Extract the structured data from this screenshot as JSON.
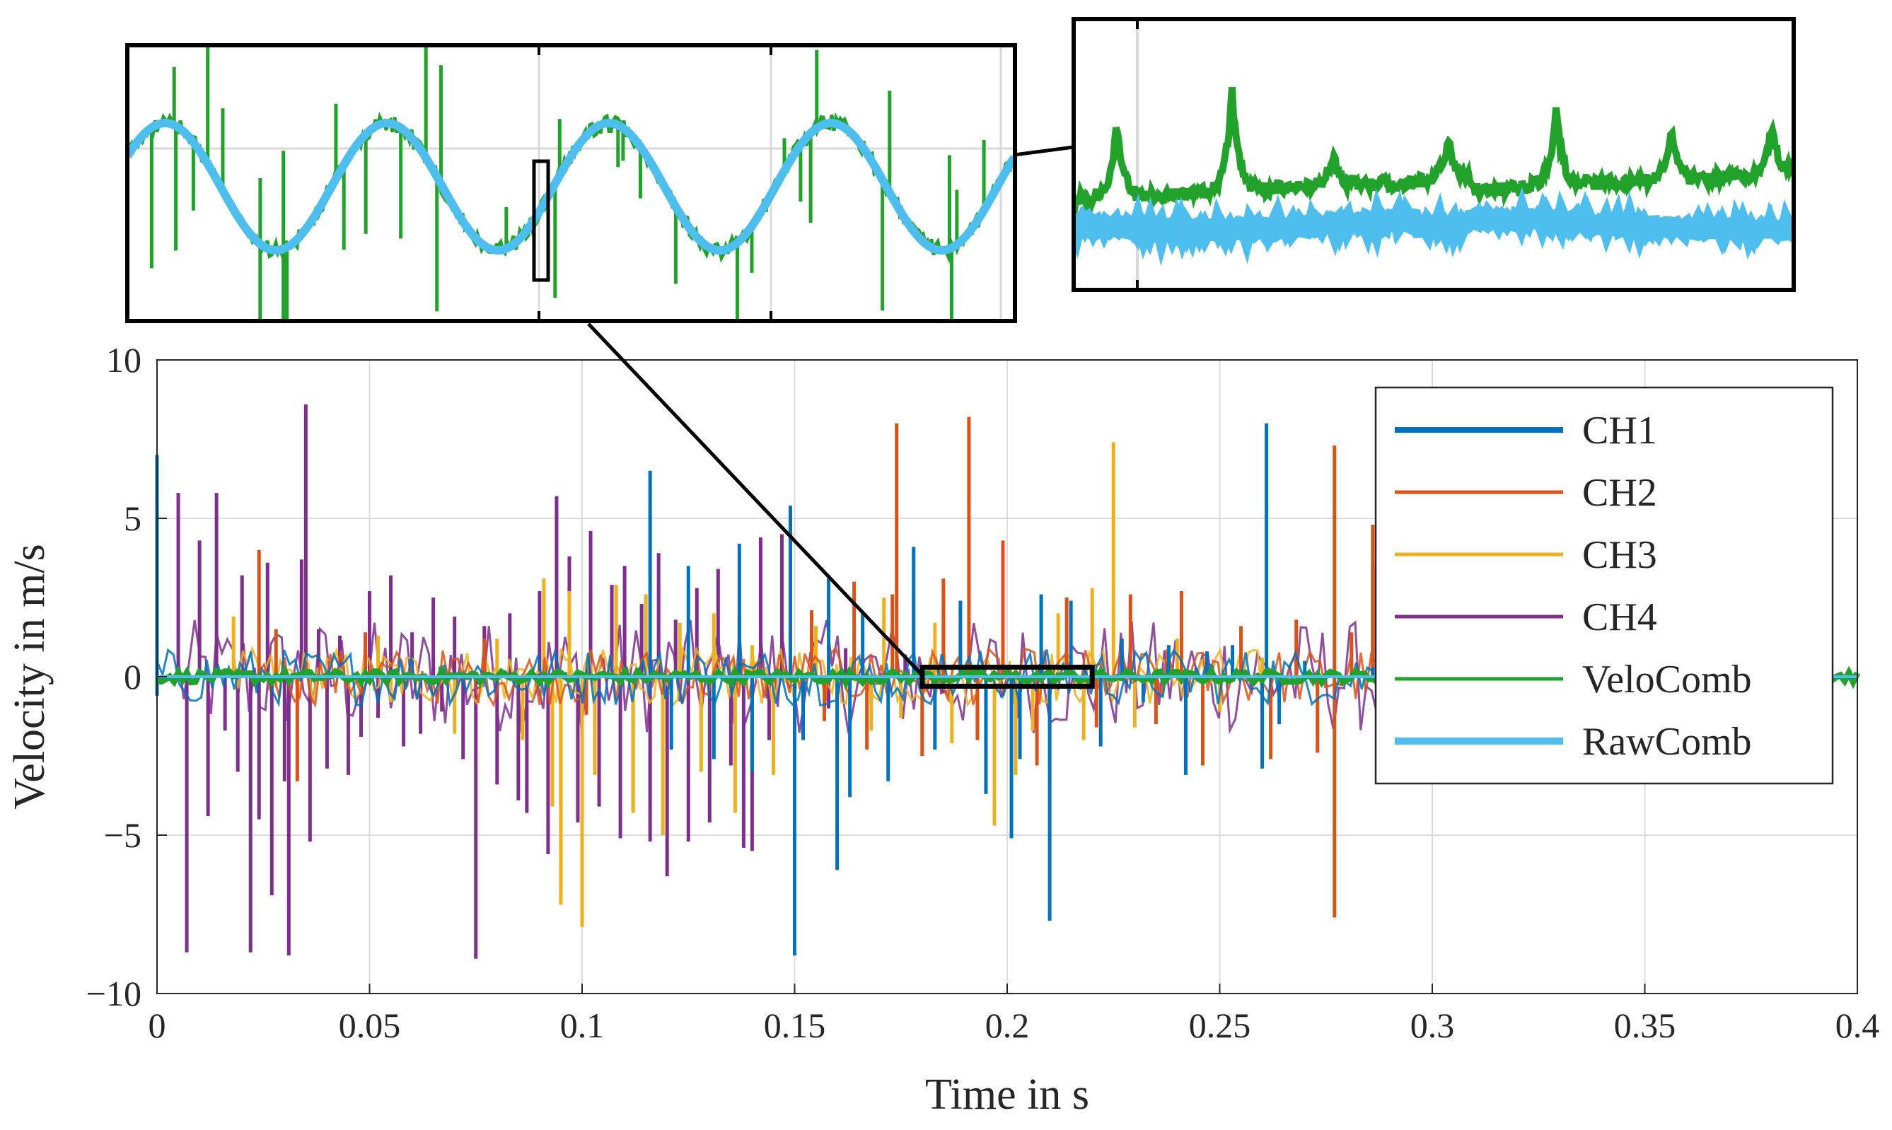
{
  "chart_data": [
    {
      "id": "main",
      "type": "line",
      "title": "",
      "xlabel": "Time in s",
      "ylabel": "Velocity in m/s",
      "xlim": [
        0,
        0.4
      ],
      "ylim": [
        -10,
        10
      ],
      "xticks": [
        0,
        0.05,
        0.1,
        0.15,
        0.2,
        0.25,
        0.3,
        0.35,
        0.4
      ],
      "xtick_labels": [
        "0",
        "0.05",
        "0.1",
        "0.15",
        "0.2",
        "0.25",
        "0.3",
        "0.35",
        "0.4"
      ],
      "yticks": [
        -10,
        -5,
        0,
        5,
        10
      ],
      "ytick_labels": [
        "−10",
        "−5",
        "0",
        "5",
        "10"
      ],
      "grid": true,
      "legend_position": "top-right",
      "zoom_region": {
        "x": [
          0.18,
          0.22
        ],
        "y": [
          -0.3,
          0.3
        ]
      },
      "series": [
        {
          "name": "CH1",
          "color": "#0072BD",
          "points": [
            [
              0.0,
              7.0
            ],
            [
              0.0,
              -0.6
            ],
            [
              0.116,
              6.5
            ],
            [
              0.121,
              -2.3
            ],
            [
              0.125,
              3.5
            ],
            [
              0.131,
              -2.6
            ],
            [
              0.137,
              4.2
            ],
            [
              0.14,
              -3.0
            ],
            [
              0.149,
              5.4
            ],
            [
              0.15,
              -8.8
            ],
            [
              0.152,
              -2.0
            ],
            [
              0.158,
              3.2
            ],
            [
              0.16,
              -6.1
            ],
            [
              0.163,
              -3.8
            ],
            [
              0.166,
              2.0
            ],
            [
              0.172,
              -3.3
            ],
            [
              0.178,
              4.1
            ],
            [
              0.183,
              -2.3
            ],
            [
              0.189,
              2.4
            ],
            [
              0.195,
              -3.7
            ],
            [
              0.201,
              -5.1
            ],
            [
              0.203,
              -2.6
            ],
            [
              0.208,
              2.6
            ],
            [
              0.21,
              -7.7
            ],
            [
              0.215,
              2.4
            ],
            [
              0.222,
              -2.2
            ],
            [
              0.227,
              1.2
            ],
            [
              0.232,
              -0.8
            ],
            [
              0.238,
              1.0
            ],
            [
              0.242,
              -3.1
            ],
            [
              0.247,
              0.8
            ],
            [
              0.253,
              1.0
            ],
            [
              0.26,
              -2.9
            ],
            [
              0.261,
              8.0
            ],
            [
              0.264,
              -1.5
            ],
            [
              0.27,
              0.5
            ],
            [
              0.286,
              0.3
            ]
          ]
        },
        {
          "name": "CH2",
          "color": "#D95319",
          "points": [
            [
              0.024,
              4.0
            ],
            [
              0.028,
              1.5
            ],
            [
              0.033,
              -3.3
            ],
            [
              0.049,
              1.4
            ],
            [
              0.077,
              1.2
            ],
            [
              0.101,
              -1.2
            ],
            [
              0.154,
              2.1
            ],
            [
              0.157,
              -1.4
            ],
            [
              0.164,
              3.0
            ],
            [
              0.167,
              -2.3
            ],
            [
              0.173,
              2.6
            ],
            [
              0.174,
              8.0
            ],
            [
              0.18,
              -2.5
            ],
            [
              0.185,
              3.1
            ],
            [
              0.191,
              8.2
            ],
            [
              0.193,
              -2.0
            ],
            [
              0.199,
              4.3
            ],
            [
              0.207,
              -2.8
            ],
            [
              0.214,
              2.5
            ],
            [
              0.221,
              -1.6
            ],
            [
              0.229,
              2.6
            ],
            [
              0.235,
              -1.5
            ],
            [
              0.241,
              2.7
            ],
            [
              0.246,
              -2.8
            ],
            [
              0.255,
              1.6
            ],
            [
              0.262,
              -2.6
            ],
            [
              0.268,
              1.8
            ],
            [
              0.273,
              -2.4
            ],
            [
              0.277,
              7.3
            ],
            [
              0.277,
              -7.6
            ],
            [
              0.281,
              1.4
            ],
            [
              0.286,
              4.8
            ],
            [
              0.288,
              -0.8
            ]
          ]
        },
        {
          "name": "CH3",
          "color": "#EDB120",
          "points": [
            [
              0.018,
              1.9
            ],
            [
              0.052,
              1.3
            ],
            [
              0.055,
              -0.8
            ],
            [
              0.07,
              -1.8
            ],
            [
              0.08,
              1.2
            ],
            [
              0.086,
              -2.0
            ],
            [
              0.091,
              3.1
            ],
            [
              0.093,
              -4.1
            ],
            [
              0.095,
              -7.2
            ],
            [
              0.097,
              2.7
            ],
            [
              0.1,
              -7.9
            ],
            [
              0.103,
              -3.1
            ],
            [
              0.108,
              2.9
            ],
            [
              0.112,
              -4.3
            ],
            [
              0.115,
              2.6
            ],
            [
              0.119,
              -5.0
            ],
            [
              0.123,
              1.7
            ],
            [
              0.128,
              -3.0
            ],
            [
              0.131,
              2.0
            ],
            [
              0.136,
              -4.3
            ],
            [
              0.14,
              1.0
            ],
            [
              0.145,
              -3.1
            ],
            [
              0.155,
              1.6
            ],
            [
              0.16,
              -2.1
            ],
            [
              0.168,
              -1.7
            ],
            [
              0.171,
              2.5
            ],
            [
              0.175,
              -1.3
            ],
            [
              0.183,
              1.7
            ],
            [
              0.187,
              -2.1
            ],
            [
              0.193,
              -1.8
            ],
            [
              0.197,
              -4.7
            ],
            [
              0.202,
              -3.1
            ],
            [
              0.206,
              -1.7
            ],
            [
              0.212,
              2.0
            ],
            [
              0.218,
              -2.0
            ],
            [
              0.22,
              2.8
            ],
            [
              0.225,
              7.4
            ],
            [
              0.23,
              -1.6
            ],
            [
              0.24,
              1.2
            ],
            [
              0.25,
              -1.1
            ],
            [
              0.26,
              0.6
            ]
          ]
        },
        {
          "name": "CH4",
          "color": "#7E2F8E",
          "points": [
            [
              0.005,
              5.8
            ],
            [
              0.007,
              -8.7
            ],
            [
              0.01,
              4.3
            ],
            [
              0.012,
              -4.4
            ],
            [
              0.014,
              5.8
            ],
            [
              0.016,
              -1.7
            ],
            [
              0.019,
              -3.0
            ],
            [
              0.02,
              3.2
            ],
            [
              0.022,
              -8.7
            ],
            [
              0.024,
              -4.5
            ],
            [
              0.026,
              3.6
            ],
            [
              0.027,
              -6.9
            ],
            [
              0.03,
              -3.3
            ],
            [
              0.031,
              -8.8
            ],
            [
              0.034,
              3.7
            ],
            [
              0.035,
              8.6
            ],
            [
              0.036,
              -5.2
            ],
            [
              0.038,
              1.5
            ],
            [
              0.04,
              -2.9
            ],
            [
              0.043,
              1.3
            ],
            [
              0.045,
              -3.1
            ],
            [
              0.048,
              -1.9
            ],
            [
              0.05,
              2.7
            ],
            [
              0.052,
              -1.3
            ],
            [
              0.055,
              3.2
            ],
            [
              0.058,
              -2.2
            ],
            [
              0.06,
              1.4
            ],
            [
              0.062,
              -1.8
            ],
            [
              0.065,
              2.5
            ],
            [
              0.067,
              -1.1
            ],
            [
              0.07,
              1.9
            ],
            [
              0.072,
              -2.6
            ],
            [
              0.075,
              -8.9
            ],
            [
              0.077,
              1.6
            ],
            [
              0.08,
              -3.4
            ],
            [
              0.083,
              2.0
            ],
            [
              0.085,
              -3.9
            ],
            [
              0.087,
              -4.3
            ],
            [
              0.09,
              2.7
            ],
            [
              0.092,
              -5.6
            ],
            [
              0.094,
              5.7
            ],
            [
              0.095,
              -4.1
            ],
            [
              0.097,
              3.8
            ],
            [
              0.099,
              -4.6
            ],
            [
              0.102,
              4.6
            ],
            [
              0.104,
              -4.1
            ],
            [
              0.107,
              2.9
            ],
            [
              0.109,
              -5.1
            ],
            [
              0.11,
              3.5
            ],
            [
              0.112,
              -4.2
            ],
            [
              0.114,
              2.3
            ],
            [
              0.116,
              -5.2
            ],
            [
              0.118,
              3.9
            ],
            [
              0.12,
              -6.3
            ],
            [
              0.122,
              1.8
            ],
            [
              0.125,
              -5.2
            ],
            [
              0.127,
              2.8
            ],
            [
              0.13,
              -4.6
            ],
            [
              0.132,
              3.4
            ],
            [
              0.135,
              -2.8
            ],
            [
              0.137,
              1.9
            ],
            [
              0.138,
              -5.4
            ],
            [
              0.14,
              -5.5
            ],
            [
              0.142,
              4.4
            ],
            [
              0.144,
              -2.0
            ],
            [
              0.147,
              4.5
            ],
            [
              0.15,
              -1.5
            ],
            [
              0.155,
              1.3
            ],
            [
              0.158,
              -1.0
            ],
            [
              0.162,
              0.9
            ],
            [
              0.168,
              -0.8
            ],
            [
              0.176,
              0.7
            ],
            [
              0.185,
              -0.5
            ],
            [
              0.286,
              3.6
            ],
            [
              0.287,
              -0.5
            ]
          ]
        },
        {
          "name": "VeloComb",
          "color": "#22A22A",
          "points": [
            [
              0.0,
              0.0
            ],
            [
              0.4,
              0.0
            ]
          ]
        },
        {
          "name": "RawComb",
          "color": "#4DBEEE",
          "points": [
            [
              0.0,
              0.0
            ],
            [
              0.4,
              0.0
            ]
          ]
        }
      ]
    },
    {
      "id": "inset-left",
      "type": "line",
      "title": "",
      "grid": true,
      "series": [
        {
          "name": "VeloComb",
          "color": "#22A22A",
          "cycles": 4,
          "spikes": 38
        },
        {
          "name": "RawComb",
          "color": "#4DBEEE",
          "cycles": 4
        }
      ]
    },
    {
      "id": "inset-right",
      "type": "line",
      "title": "",
      "grid": true,
      "series": [
        {
          "name": "VeloComb",
          "color": "#22A22A",
          "peaks": [
            0.06,
            0.22,
            0.36,
            0.52,
            0.67,
            0.83,
            0.97
          ]
        },
        {
          "name": "RawComb",
          "color": "#4DBEEE"
        }
      ]
    }
  ]
}
